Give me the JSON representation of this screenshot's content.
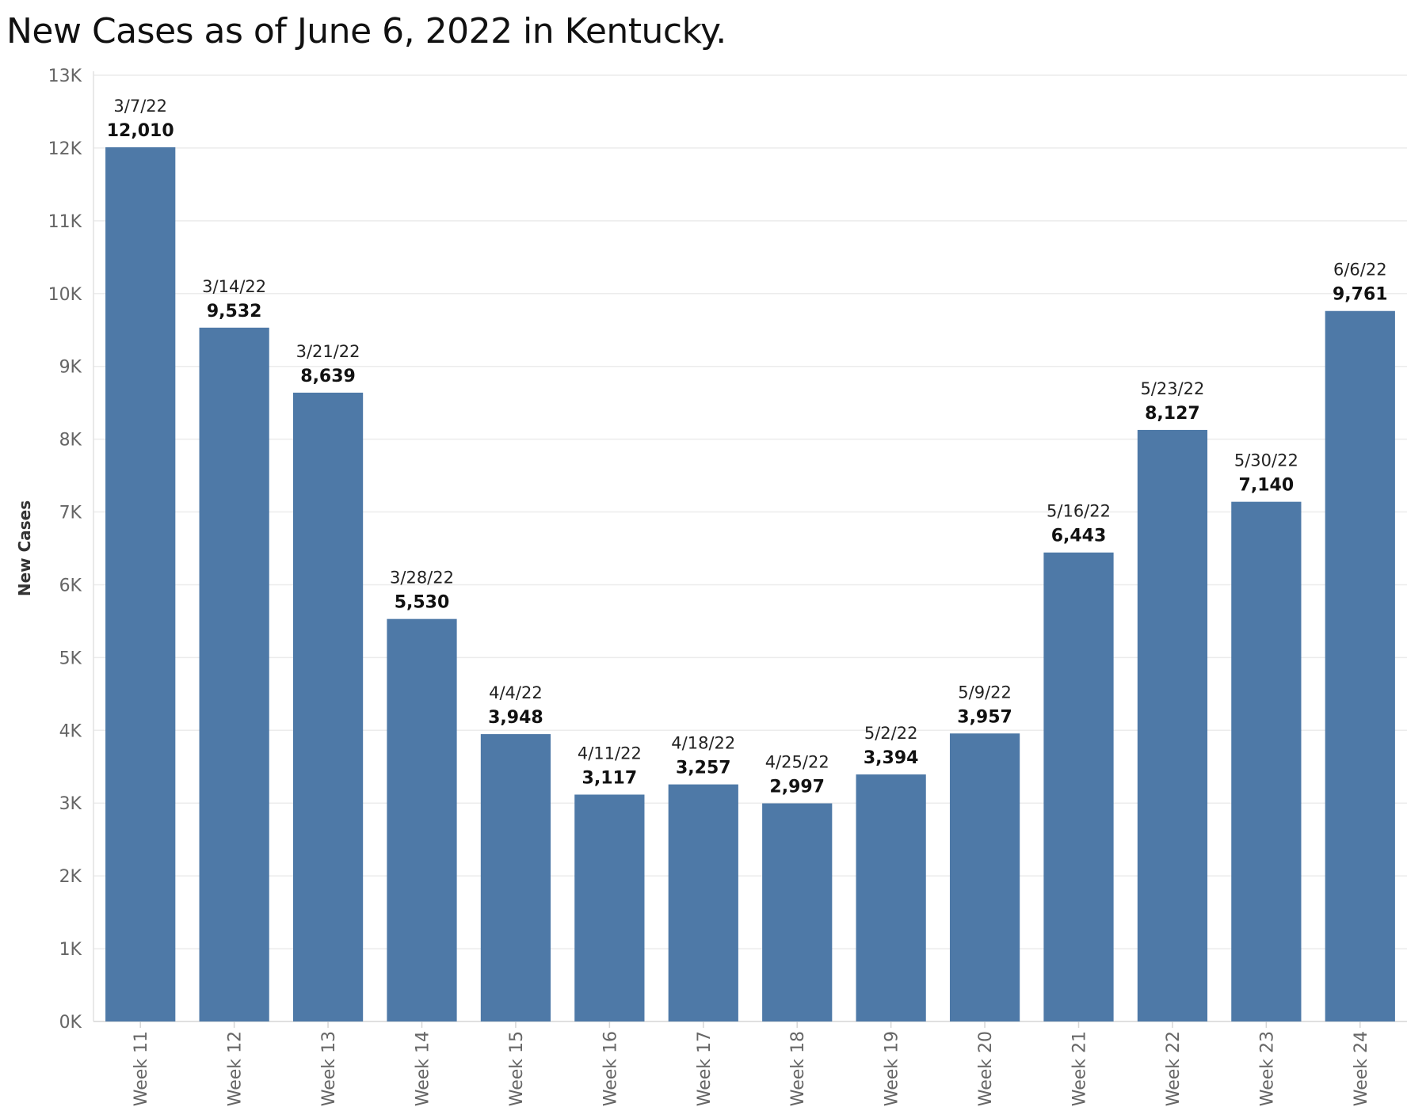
{
  "title": "New Cases as of June 6, 2022 in Kentucky.",
  "chart_data": {
    "type": "bar",
    "title": "New Cases as of June 6, 2022 in Kentucky.",
    "xlabel": "",
    "ylabel": "New Cases",
    "ylim": [
      0,
      13000
    ],
    "y_ticks": [
      0,
      1000,
      2000,
      3000,
      4000,
      5000,
      6000,
      7000,
      8000,
      9000,
      10000,
      11000,
      12000,
      13000
    ],
    "y_tick_labels": [
      "0K",
      "1K",
      "2K",
      "3K",
      "4K",
      "5K",
      "6K",
      "7K",
      "8K",
      "9K",
      "10K",
      "11K",
      "12K",
      "13K"
    ],
    "grid": true,
    "bar_color": "#4e79a7",
    "categories": [
      "Week 11",
      "Week 12",
      "Week 13",
      "Week 14",
      "Week 15",
      "Week 16",
      "Week 17",
      "Week 18",
      "Week 19",
      "Week 20",
      "Week 21",
      "Week 22",
      "Week 23",
      "Week 24"
    ],
    "dates": [
      "3/7/22",
      "3/14/22",
      "3/21/22",
      "3/28/22",
      "4/4/22",
      "4/11/22",
      "4/18/22",
      "4/25/22",
      "5/2/22",
      "5/9/22",
      "5/16/22",
      "5/23/22",
      "5/30/22",
      "6/6/22"
    ],
    "values": [
      12010,
      9532,
      8639,
      5530,
      3948,
      3117,
      3257,
      2997,
      3394,
      3957,
      6443,
      8127,
      7140,
      9761
    ],
    "value_labels": [
      "12,010",
      "9,532",
      "8,639",
      "5,530",
      "3,948",
      "3,117",
      "3,257",
      "2,997",
      "3,394",
      "3,957",
      "6,443",
      "8,127",
      "7,140",
      "9,761"
    ]
  }
}
